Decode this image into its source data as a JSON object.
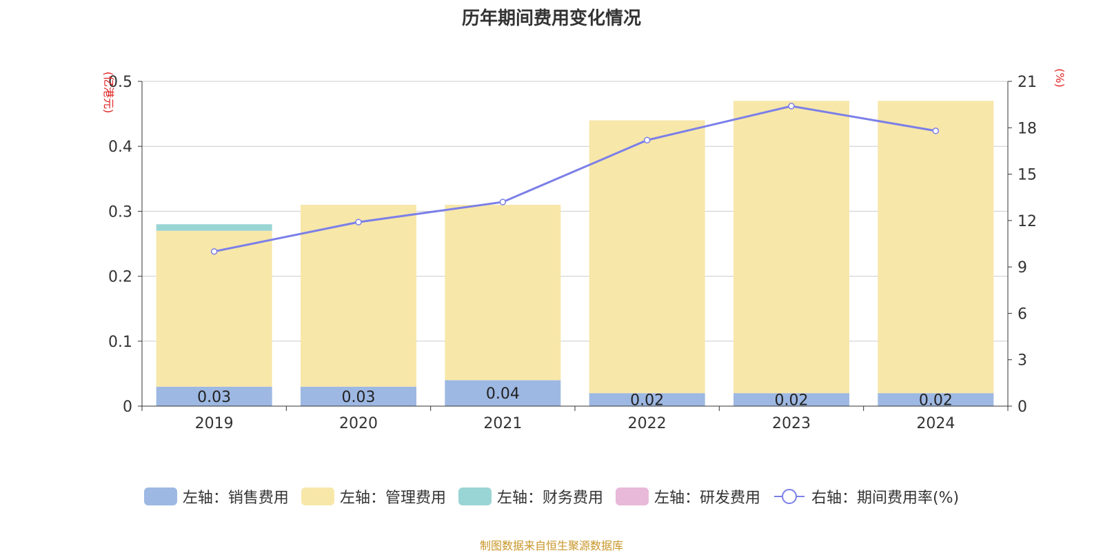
{
  "chart_data": {
    "type": "bar",
    "title": "历年期间费用变化情况",
    "categories": [
      "2019",
      "2020",
      "2021",
      "2022",
      "2023",
      "2024"
    ],
    "left_axis": {
      "unit_label": "(亿港元)",
      "ylim": [
        0,
        0.5
      ],
      "ticks": [
        "0",
        "0.1",
        "0.2",
        "0.3",
        "0.4",
        "0.5"
      ]
    },
    "right_axis": {
      "unit_label": "(%)",
      "ylim": [
        0,
        21
      ],
      "ticks": [
        "0",
        "3",
        "6",
        "9",
        "12",
        "15",
        "18",
        "21"
      ]
    },
    "series": [
      {
        "name": "左轴：销售费用",
        "type": "bar",
        "stack": true,
        "color": "#9db8e2",
        "values": [
          0.03,
          0.03,
          0.04,
          0.02,
          0.02,
          0.02
        ],
        "labels": [
          "0.03",
          "0.03",
          "0.04",
          "0.02",
          "0.02",
          "0.02"
        ]
      },
      {
        "name": "左轴：管理费用",
        "type": "bar",
        "stack": true,
        "color": "#f7e7a9",
        "values": [
          0.24,
          0.28,
          0.27,
          0.42,
          0.45,
          0.45
        ]
      },
      {
        "name": "左轴：财务费用",
        "type": "bar",
        "stack": true,
        "color": "#9ad5d5",
        "values": [
          0.01,
          0,
          0,
          0,
          0,
          0
        ]
      },
      {
        "name": "左轴：研发费用",
        "type": "bar",
        "stack": true,
        "color": "#e8b9d9",
        "values": [
          0,
          0,
          0,
          0,
          0,
          0
        ]
      },
      {
        "name": "右轴：期间费用率(%)",
        "type": "line",
        "axis": "right",
        "color": "#7b7fe8",
        "values": [
          10.0,
          11.9,
          13.2,
          17.2,
          19.4,
          17.8
        ]
      }
    ],
    "grid": true,
    "legend_position": "bottom"
  },
  "footer": {
    "source": "制图数据来自恒生聚源数据库"
  }
}
